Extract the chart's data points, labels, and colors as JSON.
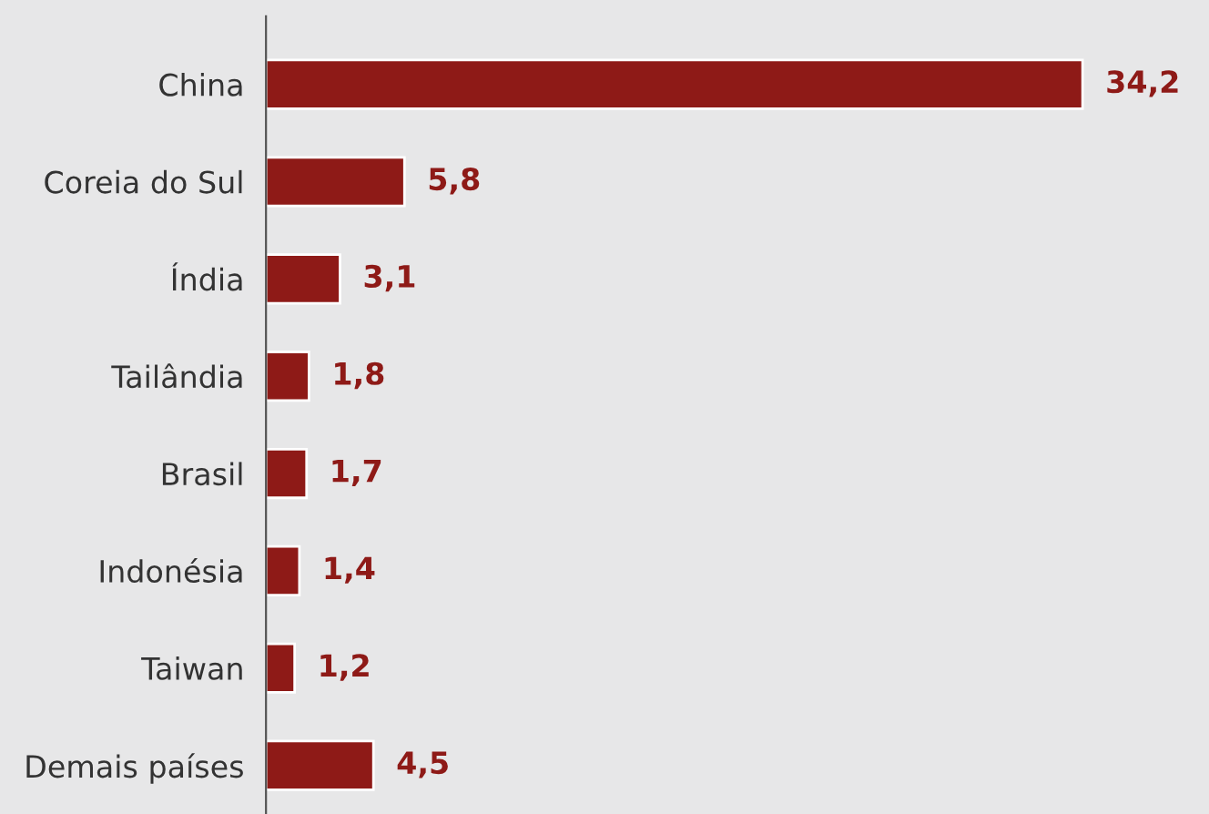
{
  "chart_data": {
    "type": "bar",
    "orientation": "horizontal",
    "categories": [
      "China",
      "Coreia do Sul",
      "Índia",
      "Tailândia",
      "Brasil",
      "Indonésia",
      "Taiwan",
      "Demais países"
    ],
    "values": [
      34.2,
      5.8,
      3.1,
      1.8,
      1.7,
      1.4,
      1.2,
      4.5
    ],
    "value_labels": [
      "34,2",
      "5,8",
      "3,1",
      "1,8",
      "1,7",
      "1,4",
      "1,2",
      "4,5"
    ],
    "color": "#8e1a17",
    "grid": false,
    "legend": false
  }
}
